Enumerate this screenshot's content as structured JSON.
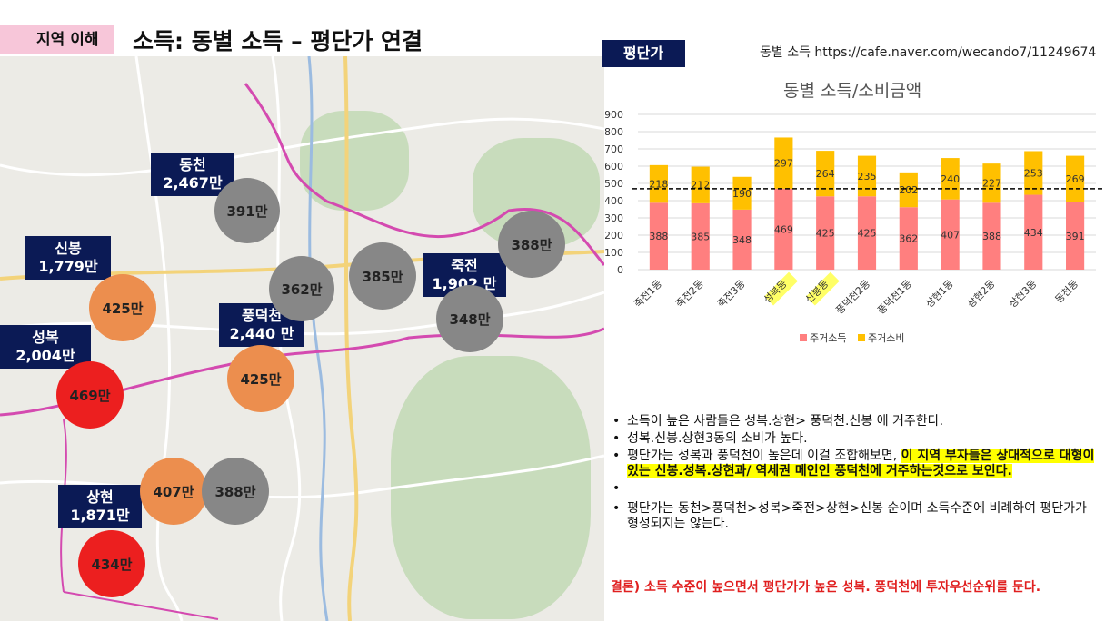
{
  "header": {
    "tag": "지역 이해",
    "title": "소득: 동별 소득 – 평단가 연결"
  },
  "map": {
    "labels": [
      {
        "name": "동천",
        "value": "2,467만"
      },
      {
        "name": "신봉",
        "value": "1,779만"
      },
      {
        "name": "풍덕천",
        "value": "2,440 만"
      },
      {
        "name": "죽전",
        "value": "1,902 만"
      },
      {
        "name": "성복",
        "value": "2,004만"
      },
      {
        "name": "상현",
        "value": "1,871만"
      }
    ],
    "bubbles": [
      {
        "text": "391만",
        "color": "#878787"
      },
      {
        "text": "362만",
        "color": "#878787"
      },
      {
        "text": "385만",
        "color": "#878787"
      },
      {
        "text": "388만",
        "color": "#878787"
      },
      {
        "text": "348만",
        "color": "#878787"
      },
      {
        "text": "425만",
        "color": "#ec8e4e"
      },
      {
        "text": "425만",
        "color": "#ec8e4e"
      },
      {
        "text": "469만",
        "color": "#ec1f1f"
      },
      {
        "text": "407만",
        "color": "#ec8e4e"
      },
      {
        "text": "388만",
        "color": "#878787"
      },
      {
        "text": "434만",
        "color": "#ec1f1f"
      }
    ]
  },
  "panel": {
    "tag": "평단가",
    "source": "동별 소득 https://cafe.naver.com/wecando7/11249674"
  },
  "chart_data": {
    "type": "bar",
    "stacked": true,
    "title": "동별 소득/소비금액",
    "categories": [
      "죽전1동",
      "죽전2동",
      "죽전3동",
      "성복동",
      "신봉동",
      "풍덕천2동",
      "풍덕천1동",
      "상현1동",
      "상현2동",
      "상현3동",
      "동천동"
    ],
    "highlighted_categories": [
      "성복동",
      "신봉동"
    ],
    "series": [
      {
        "name": "주거소득",
        "color": "#ff7f7f",
        "values": [
          388,
          385,
          348,
          469,
          425,
          425,
          362,
          407,
          388,
          434,
          391
        ]
      },
      {
        "name": "주거소비",
        "color": "#ffc000",
        "values": [
          218,
          212,
          190,
          297,
          264,
          235,
          202,
          240,
          227,
          253,
          269
        ]
      }
    ],
    "ylim": [
      0,
      900
    ],
    "yticks": [
      "0",
      "100",
      "200",
      "300",
      "400",
      "500",
      "600",
      "700",
      "800",
      "900"
    ],
    "reference_line": 469,
    "legend": "bottom",
    "grid": true
  },
  "notes": {
    "b1": "소득이 높은 사람들은 성복.상현> 풍덕천.신봉 에 거주한다.",
    "b2": "성복.신봉.상현3동의 소비가 높다.",
    "b3_plain": "평단가는 성복과 풍덕천이 높은데 이걸 조합해보면, ",
    "b3_highlight": "이 지역 부자들은 상대적으로 대형이 있는 신봉.성복.상현과/ 역세권 메인인 풍덕천에 거주하는것으로 보인다.",
    "b4": "평단가는 동천>풍덕천>성복>죽전>상현>신봉 순이며 소득수준에 비례하여 평단가가 형성되지는 않는다.",
    "conclusion": "결론) 소득 수준이 높으면서 평단가가 높은 성복. 풍덕천에 투자우선순위를 둔다."
  }
}
